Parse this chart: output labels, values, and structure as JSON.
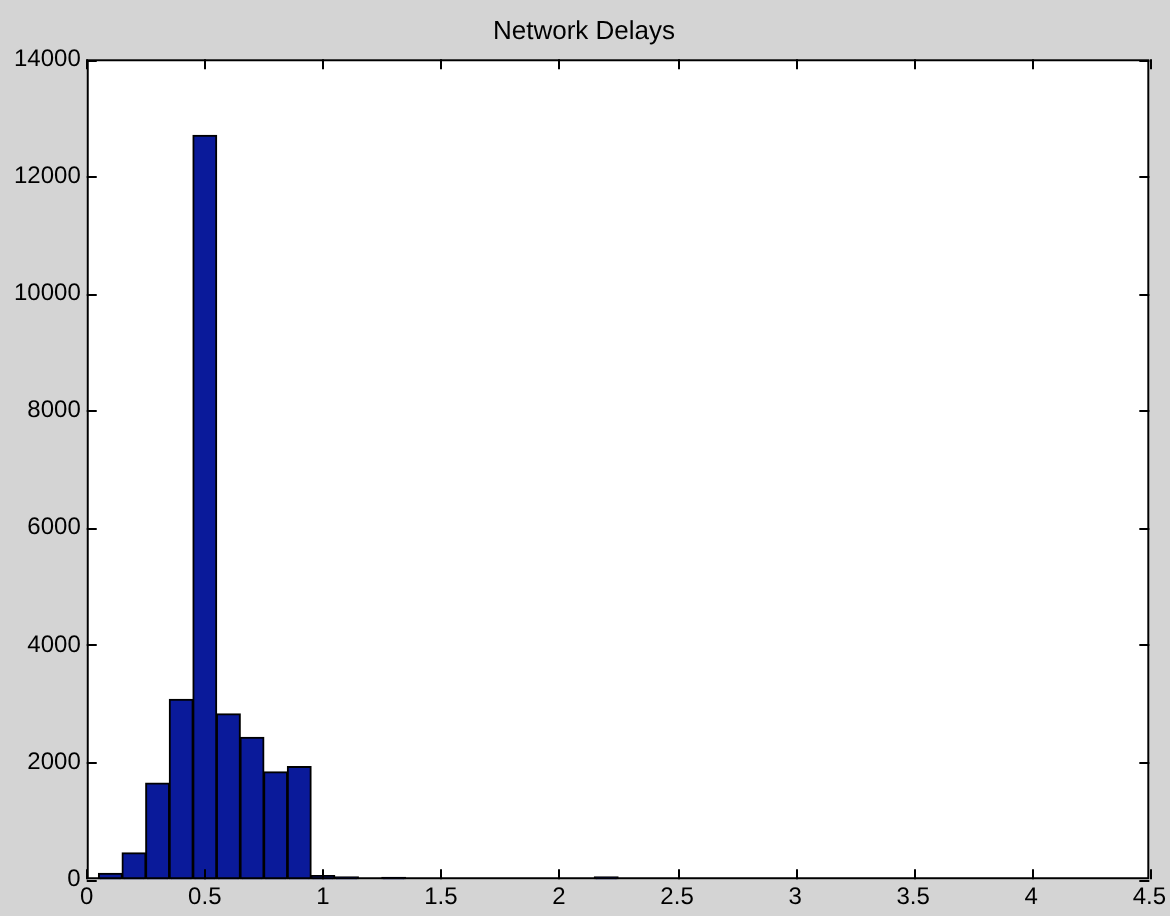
{
  "chart_data": {
    "type": "histogram",
    "title": "Network Delays",
    "bins": [
      0.05,
      0.15,
      0.25,
      0.35,
      0.45,
      0.55,
      0.65,
      0.75,
      0.85,
      0.95,
      1.05,
      1.15,
      1.25,
      1.35,
      1.45,
      1.55,
      1.65,
      1.75,
      1.85,
      1.95,
      2.05,
      2.15,
      2.25
    ],
    "values": [
      100,
      450,
      1640,
      3070,
      12700,
      2820,
      2420,
      1830,
      1920,
      60,
      40,
      0,
      30,
      0,
      0,
      0,
      0,
      0,
      0,
      0,
      0,
      40
    ],
    "color": "#0a1a9a",
    "xlim": [
      0,
      4.5
    ],
    "xticks": [
      0,
      0.5,
      1,
      1.5,
      2,
      2.5,
      3,
      3.5,
      4,
      4.5
    ],
    "ylim": [
      0,
      14000
    ],
    "yticks": [
      0,
      2000,
      4000,
      6000,
      8000,
      10000,
      12000,
      14000
    ],
    "grid": false,
    "legend": false
  }
}
